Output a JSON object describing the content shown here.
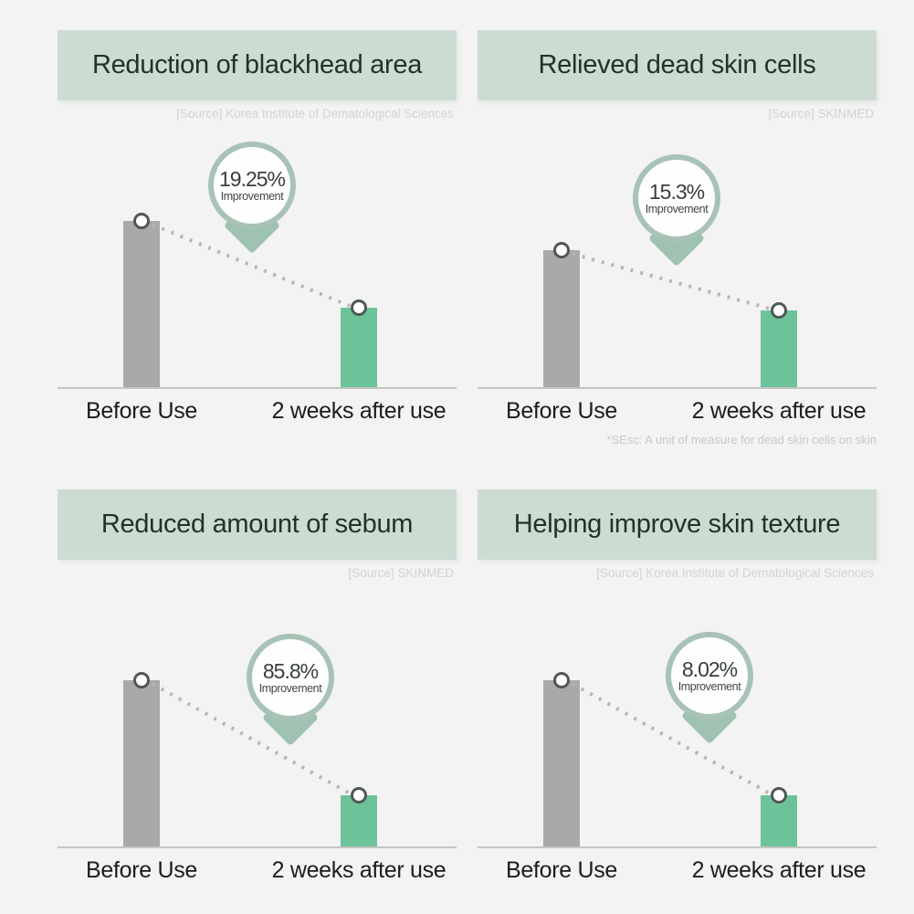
{
  "colors": {
    "page_background": "#f2f3f2",
    "header_background": "#ccdcd3",
    "bar_before": "#a9a9a9",
    "bar_after": "#6cc39a",
    "balloon_ring": "#a8c2b6",
    "balloon_tail": "#9fc2b2",
    "axis_line": "#c3c4c3",
    "dotted_line": "#b5b6b5",
    "title_text": "#20322a"
  },
  "chart_data": [
    {
      "type": "bar",
      "title": "Reduction of blackhead area",
      "source": "[Source] Korea Institute of Dematological Sciences",
      "categories": [
        "Before Use",
        "2 weeks after use"
      ],
      "values": [
        100,
        48
      ],
      "improvement": "19.25%",
      "improvement_label": "Improvement",
      "footnote": "",
      "legend_position": "none",
      "grid": false
    },
    {
      "type": "bar",
      "title": "Relieved dead skin cells",
      "source": "[Source] SKINMED",
      "categories": [
        "Before Use",
        "2 weeks after use"
      ],
      "values": [
        100,
        56
      ],
      "improvement": "15.3%",
      "improvement_label": "Improvement",
      "footnote": "*SEsc: A unit of measure for dead skin cells on skin",
      "legend_position": "none",
      "grid": false
    },
    {
      "type": "bar",
      "title": "Reduced amount of sebum",
      "source": "[Source] SKINMED",
      "categories": [
        "Before Use",
        "2 weeks after use"
      ],
      "values": [
        100,
        31
      ],
      "improvement": "85.8%",
      "improvement_label": "Improvement",
      "footnote": "",
      "legend_position": "none",
      "grid": false
    },
    {
      "type": "bar",
      "title": "Helping improve skin texture",
      "source": "[Source] Korea Institute of Dematological Sciences",
      "categories": [
        "Before Use",
        "2 weeks after use"
      ],
      "values": [
        100,
        31
      ],
      "improvement": "8.02%",
      "improvement_label": "Improvement",
      "footnote": "",
      "legend_position": "none",
      "grid": false
    }
  ]
}
